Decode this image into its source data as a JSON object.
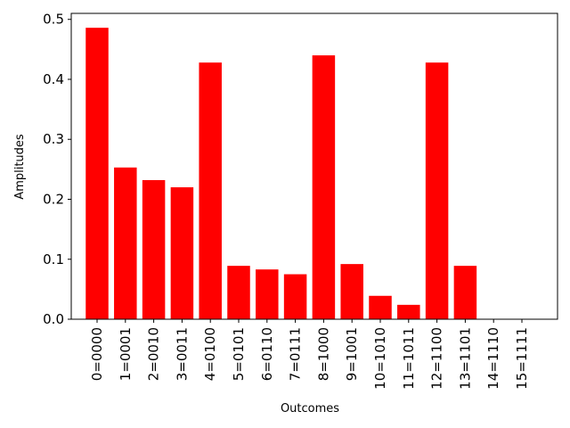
{
  "chart_data": {
    "type": "bar",
    "title": "",
    "xlabel": "Outcomes",
    "ylabel": "Amplitudes",
    "categories": [
      "0=0000",
      "1=0001",
      "2=0010",
      "3=0011",
      "4=0100",
      "5=0101",
      "6=0110",
      "7=0111",
      "8=1000",
      "9=1001",
      "10=1010",
      "11=1011",
      "12=1100",
      "13=1101",
      "14=1110",
      "15=1111"
    ],
    "values": [
      0.486,
      0.253,
      0.232,
      0.22,
      0.428,
      0.089,
      0.083,
      0.075,
      0.44,
      0.092,
      0.039,
      0.024,
      0.428,
      0.089,
      0.0,
      0.0
    ],
    "ylim": [
      0,
      0.51
    ],
    "yticks": [
      0.0,
      0.1,
      0.2,
      0.3,
      0.4,
      0.5
    ],
    "ytick_labels": [
      "0.0",
      "0.1",
      "0.2",
      "0.3",
      "0.4",
      "0.5"
    ],
    "bar_color": "#ff0000",
    "grid": false,
    "legend": "none"
  }
}
